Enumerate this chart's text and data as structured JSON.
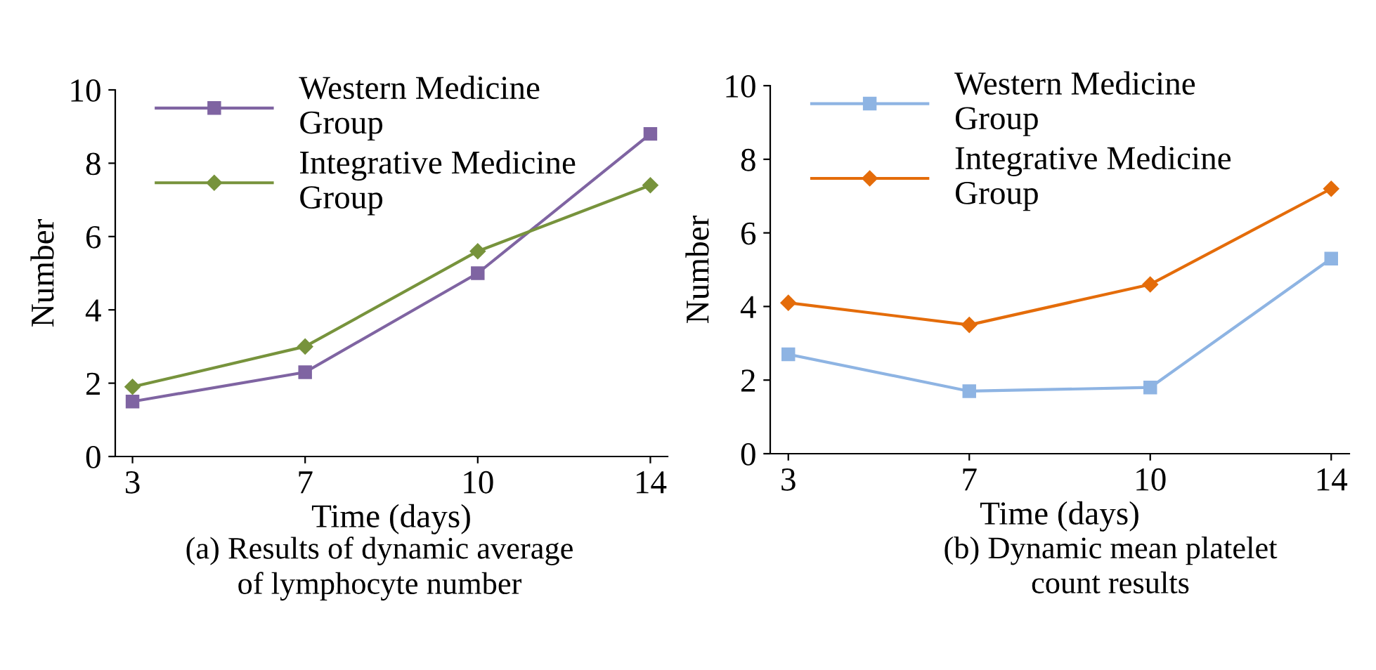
{
  "chart_data": [
    {
      "type": "line",
      "categories": [
        "3",
        "7",
        "10",
        "14"
      ],
      "xlabel": "Time (days)",
      "ylabel": "Number",
      "ylim": [
        0,
        10
      ],
      "yticks": [
        0,
        2,
        4,
        6,
        8,
        10
      ],
      "legend": "top left",
      "grid": false,
      "series": [
        {
          "name": "Western Medicine Group",
          "color": "#7f64a2",
          "marker": "square",
          "values": [
            1.5,
            2.3,
            5.0,
            8.8
          ]
        },
        {
          "name": "Integrative Medicine Group",
          "color": "#77933c",
          "marker": "diamond",
          "values": [
            1.9,
            3.0,
            5.6,
            7.4
          ]
        }
      ],
      "annotations": [
        "(a) Results of dynamic average of lymphocyte number"
      ]
    },
    {
      "type": "line",
      "categories": [
        "3",
        "7",
        "10",
        "14"
      ],
      "xlabel": "Time (days)",
      "ylabel": "Number",
      "ylim": [
        0,
        10
      ],
      "yticks": [
        0,
        2,
        4,
        6,
        8,
        10
      ],
      "legend": "top left",
      "grid": false,
      "series": [
        {
          "name": "Western Medicine Group",
          "color": "#8eb4e3",
          "marker": "square",
          "values": [
            2.7,
            1.7,
            1.8,
            5.3
          ]
        },
        {
          "name": "Integrative Medicine Group",
          "color": "#e46c0a",
          "marker": "diamond",
          "values": [
            4.1,
            3.5,
            4.6,
            7.2
          ]
        }
      ],
      "annotations": [
        "(b) Dynamic mean platelet count results"
      ]
    }
  ]
}
